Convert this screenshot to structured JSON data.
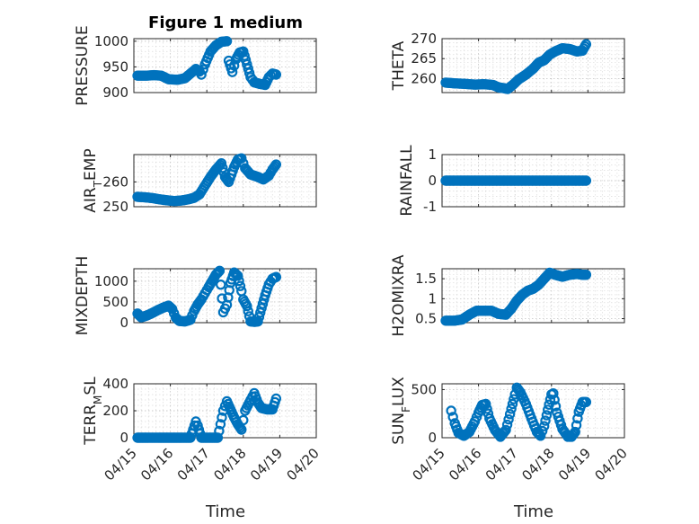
{
  "figure_title": "Figure 1 medium",
  "chart_data": [
    {
      "type": "scatter",
      "ylabel": "PRESSURE",
      "title": "Figure 1 medium",
      "xlim": [
        0,
        5
      ],
      "ylim": [
        900,
        1005
      ],
      "yticks": [
        900,
        950,
        1000
      ],
      "ytick_labels": [
        "900",
        "950",
        "1000"
      ],
      "points": [
        [
          0.1,
          933
        ],
        [
          0.35,
          933
        ],
        [
          0.55,
          934
        ],
        [
          0.75,
          933
        ],
        [
          0.95,
          926
        ],
        [
          1.2,
          925
        ],
        [
          1.4,
          928
        ],
        [
          1.55,
          937
        ],
        [
          1.7,
          946
        ],
        [
          1.8,
          941
        ],
        [
          1.85,
          935
        ],
        [
          1.95,
          955
        ],
        [
          2.1,
          980
        ],
        [
          2.25,
          992
        ],
        [
          2.4,
          999
        ],
        [
          2.55,
          1000
        ],
        [
          2.6,
          962
        ],
        [
          2.7,
          940
        ],
        [
          2.8,
          965
        ],
        [
          2.9,
          978
        ],
        [
          3.0,
          980
        ],
        [
          3.1,
          955
        ],
        [
          3.2,
          930
        ],
        [
          3.3,
          920
        ],
        [
          3.45,
          917
        ],
        [
          3.6,
          915
        ],
        [
          3.7,
          930
        ],
        [
          3.8,
          937
        ],
        [
          3.9,
          935
        ]
      ]
    },
    {
      "type": "scatter",
      "ylabel": "THETA",
      "xlim": [
        0,
        5
      ],
      "ylim": [
        256.5,
        270
      ],
      "yticks": [
        260,
        265,
        270
      ],
      "ytick_labels": [
        "260",
        "265",
        "270"
      ],
      "points": [
        [
          0.1,
          259
        ],
        [
          0.35,
          258.8
        ],
        [
          0.6,
          258.7
        ],
        [
          0.9,
          258.5
        ],
        [
          1.15,
          258.6
        ],
        [
          1.4,
          258.4
        ],
        [
          1.55,
          257.8
        ],
        [
          1.7,
          257.6
        ],
        [
          1.8,
          257.4
        ],
        [
          1.95,
          258.5
        ],
        [
          2.1,
          259.8
        ],
        [
          2.3,
          261
        ],
        [
          2.5,
          262.5
        ],
        [
          2.65,
          264
        ],
        [
          2.8,
          264.6
        ],
        [
          2.95,
          266
        ],
        [
          3.1,
          266.8
        ],
        [
          3.3,
          267.6
        ],
        [
          3.5,
          267.4
        ],
        [
          3.7,
          266.8
        ],
        [
          3.85,
          267
        ],
        [
          3.95,
          268.6
        ]
      ]
    },
    {
      "type": "scatter",
      "ylabel": "AIR_TEMP",
      "xlim": [
        0,
        5
      ],
      "ylim": [
        250,
        271
      ],
      "yticks": [
        250,
        260
      ],
      "ytick_labels": [
        "250",
        "260"
      ],
      "points": [
        [
          0.1,
          254
        ],
        [
          0.3,
          253.8
        ],
        [
          0.5,
          253.5
        ],
        [
          0.7,
          253
        ],
        [
          0.9,
          252.6
        ],
        [
          1.1,
          252.3
        ],
        [
          1.3,
          252.5
        ],
        [
          1.5,
          253
        ],
        [
          1.65,
          253.6
        ],
        [
          1.8,
          255
        ],
        [
          1.95,
          258.5
        ],
        [
          2.1,
          262
        ],
        [
          2.25,
          265
        ],
        [
          2.4,
          267.5
        ],
        [
          2.5,
          262
        ],
        [
          2.6,
          260
        ],
        [
          2.75,
          266
        ],
        [
          2.85,
          269
        ],
        [
          2.95,
          269.5
        ],
        [
          3.05,
          265.5
        ],
        [
          3.2,
          263
        ],
        [
          3.4,
          262
        ],
        [
          3.55,
          261
        ],
        [
          3.7,
          262.5
        ],
        [
          3.8,
          265
        ],
        [
          3.9,
          267
        ]
      ]
    },
    {
      "type": "scatter",
      "ylabel": "RAINFALL",
      "xlim": [
        0,
        5
      ],
      "ylim": [
        -1,
        1
      ],
      "yticks": [
        -1,
        0,
        1
      ],
      "ytick_labels": [
        "-1",
        "0",
        "1"
      ],
      "points": [
        [
          0.1,
          0
        ],
        [
          0.5,
          0
        ],
        [
          1.0,
          0
        ],
        [
          1.5,
          0
        ],
        [
          2.0,
          0
        ],
        [
          2.5,
          0
        ],
        [
          3.0,
          0
        ],
        [
          3.5,
          0
        ],
        [
          3.95,
          0
        ]
      ]
    },
    {
      "type": "scatter",
      "ylabel": "MIXDEPTH",
      "xlim": [
        0,
        5
      ],
      "ylim": [
        0,
        1300
      ],
      "yticks": [
        0,
        500,
        1000
      ],
      "ytick_labels": [
        "0",
        "500",
        "1000"
      ],
      "points": [
        [
          0.1,
          220
        ],
        [
          0.2,
          130
        ],
        [
          0.35,
          170
        ],
        [
          0.5,
          230
        ],
        [
          0.65,
          300
        ],
        [
          0.8,
          360
        ],
        [
          0.95,
          410
        ],
        [
          1.05,
          330
        ],
        [
          1.15,
          120
        ],
        [
          1.25,
          40
        ],
        [
          1.4,
          30
        ],
        [
          1.55,
          70
        ],
        [
          1.65,
          280
        ],
        [
          1.75,
          440
        ],
        [
          1.85,
          560
        ],
        [
          1.95,
          710
        ],
        [
          2.05,
          860
        ],
        [
          2.15,
          1010
        ],
        [
          2.25,
          1160
        ],
        [
          2.35,
          1250
        ],
        [
          2.45,
          250
        ],
        [
          2.55,
          430
        ],
        [
          2.65,
          960
        ],
        [
          2.75,
          1210
        ],
        [
          2.85,
          1130
        ],
        [
          2.95,
          760
        ],
        [
          3.0,
          560
        ],
        [
          3.1,
          400
        ],
        [
          3.2,
          30
        ],
        [
          3.3,
          20
        ],
        [
          3.4,
          30
        ],
        [
          3.5,
          350
        ],
        [
          3.6,
          660
        ],
        [
          3.7,
          920
        ],
        [
          3.8,
          1060
        ],
        [
          3.9,
          1100
        ]
      ]
    },
    {
      "type": "scatter",
      "ylabel": "H2OMIXRA",
      "xlim": [
        0,
        5
      ],
      "ylim": [
        0.4,
        1.75
      ],
      "yticks": [
        0.5,
        1,
        1.5
      ],
      "ytick_labels": [
        "0.5",
        "1",
        "1.5"
      ],
      "points": [
        [
          0.1,
          0.45
        ],
        [
          0.35,
          0.45
        ],
        [
          0.55,
          0.48
        ],
        [
          0.75,
          0.6
        ],
        [
          0.95,
          0.7
        ],
        [
          1.15,
          0.7
        ],
        [
          1.35,
          0.7
        ],
        [
          1.55,
          0.62
        ],
        [
          1.75,
          0.6
        ],
        [
          1.9,
          0.75
        ],
        [
          2.05,
          0.95
        ],
        [
          2.2,
          1.1
        ],
        [
          2.35,
          1.2
        ],
        [
          2.5,
          1.25
        ],
        [
          2.65,
          1.35
        ],
        [
          2.8,
          1.5
        ],
        [
          2.95,
          1.65
        ],
        [
          3.1,
          1.6
        ],
        [
          3.3,
          1.55
        ],
        [
          3.5,
          1.6
        ],
        [
          3.7,
          1.62
        ],
        [
          3.85,
          1.6
        ],
        [
          3.95,
          1.6
        ]
      ]
    },
    {
      "type": "scatter",
      "ylabel": "TERR_MSL",
      "xlim": [
        0,
        5
      ],
      "ylim": [
        0,
        400
      ],
      "yticks": [
        0,
        200,
        400
      ],
      "ytick_labels": [
        "0",
        "200",
        "400"
      ],
      "points": [
        [
          0.1,
          0
        ],
        [
          0.4,
          0
        ],
        [
          0.7,
          0
        ],
        [
          1.0,
          0
        ],
        [
          1.3,
          0
        ],
        [
          1.55,
          0
        ],
        [
          1.7,
          120
        ],
        [
          1.75,
          90
        ],
        [
          1.85,
          0
        ],
        [
          2.1,
          0
        ],
        [
          2.3,
          0
        ],
        [
          2.45,
          200
        ],
        [
          2.55,
          270
        ],
        [
          2.65,
          210
        ],
        [
          2.75,
          150
        ],
        [
          2.85,
          100
        ],
        [
          2.95,
          60
        ],
        [
          3.05,
          200
        ],
        [
          3.2,
          280
        ],
        [
          3.3,
          330
        ],
        [
          3.4,
          260
        ],
        [
          3.5,
          220
        ],
        [
          3.65,
          210
        ],
        [
          3.8,
          210
        ],
        [
          3.9,
          290
        ]
      ]
    },
    {
      "type": "scatter",
      "ylabel": "SUN_FLUX",
      "xlim": [
        0,
        5
      ],
      "ylim": [
        0,
        560
      ],
      "yticks": [
        0,
        500
      ],
      "ytick_labels": [
        "0",
        "500"
      ],
      "points": [
        [
          0.25,
          280
        ],
        [
          0.35,
          150
        ],
        [
          0.45,
          50
        ],
        [
          0.6,
          20
        ],
        [
          0.75,
          60
        ],
        [
          0.9,
          170
        ],
        [
          1.0,
          260
        ],
        [
          1.1,
          340
        ],
        [
          1.2,
          350
        ],
        [
          1.3,
          200
        ],
        [
          1.45,
          80
        ],
        [
          1.6,
          10
        ],
        [
          1.75,
          80
        ],
        [
          1.9,
          300
        ],
        [
          2.0,
          450
        ],
        [
          2.05,
          520
        ],
        [
          2.15,
          470
        ],
        [
          2.3,
          350
        ],
        [
          2.45,
          200
        ],
        [
          2.6,
          60
        ],
        [
          2.7,
          20
        ],
        [
          2.8,
          120
        ],
        [
          2.9,
          290
        ],
        [
          3.0,
          450
        ],
        [
          3.05,
          460
        ],
        [
          3.15,
          260
        ],
        [
          3.3,
          90
        ],
        [
          3.45,
          10
        ],
        [
          3.55,
          10
        ],
        [
          3.65,
          60
        ],
        [
          3.75,
          270
        ],
        [
          3.85,
          370
        ],
        [
          3.95,
          370
        ]
      ]
    }
  ],
  "xticks": [
    0,
    1,
    2,
    3,
    4,
    5
  ],
  "xtick_labels": [
    "04/15",
    "04/16",
    "04/17",
    "04/18",
    "04/19",
    "04/20"
  ],
  "xlabel": "Time",
  "colors": {
    "marker": "#0072BD",
    "axis": "#262626",
    "grid": "#bfbfbf"
  }
}
